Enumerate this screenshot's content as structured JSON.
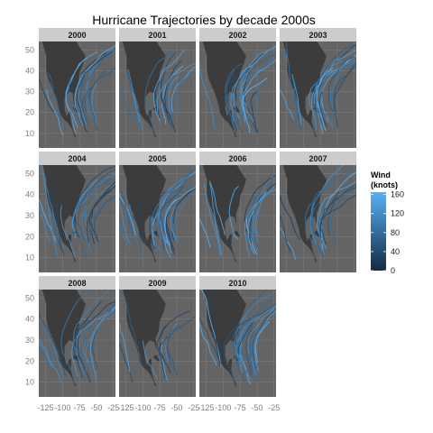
{
  "chart_data": {
    "type": "line",
    "title": "Hurricane Trajectories by decade 2000s",
    "xlabel": "",
    "ylabel": "",
    "facets": [
      "2000",
      "2001",
      "2002",
      "2003",
      "2004",
      "2005",
      "2006",
      "2007",
      "2008",
      "2009",
      "2010"
    ],
    "xlim": [
      -135,
      -22
    ],
    "ylim": [
      3,
      54
    ],
    "x_ticks": [
      -125,
      -100,
      -75,
      -50,
      -25
    ],
    "y_ticks": [
      10,
      20,
      30,
      40,
      50
    ],
    "legend": {
      "title_line1": "Wind",
      "title_line2": "(knots)",
      "position": "right",
      "ticks": [
        0,
        40,
        80,
        120,
        160
      ],
      "range": [
        0,
        165
      ]
    },
    "colors": {
      "panel_bg": "#646464",
      "land": "#3c3c3c",
      "grid": "#7a7a7a",
      "strip": "#cccccc",
      "low_wind": "#132b43",
      "high_wind": "#56b1f7",
      "axis_text": "#7f7f7f"
    },
    "tracks_per_panel": [
      18,
      17,
      16,
      19,
      20,
      26,
      14,
      15,
      18,
      11,
      21
    ],
    "series_note": ""
  }
}
